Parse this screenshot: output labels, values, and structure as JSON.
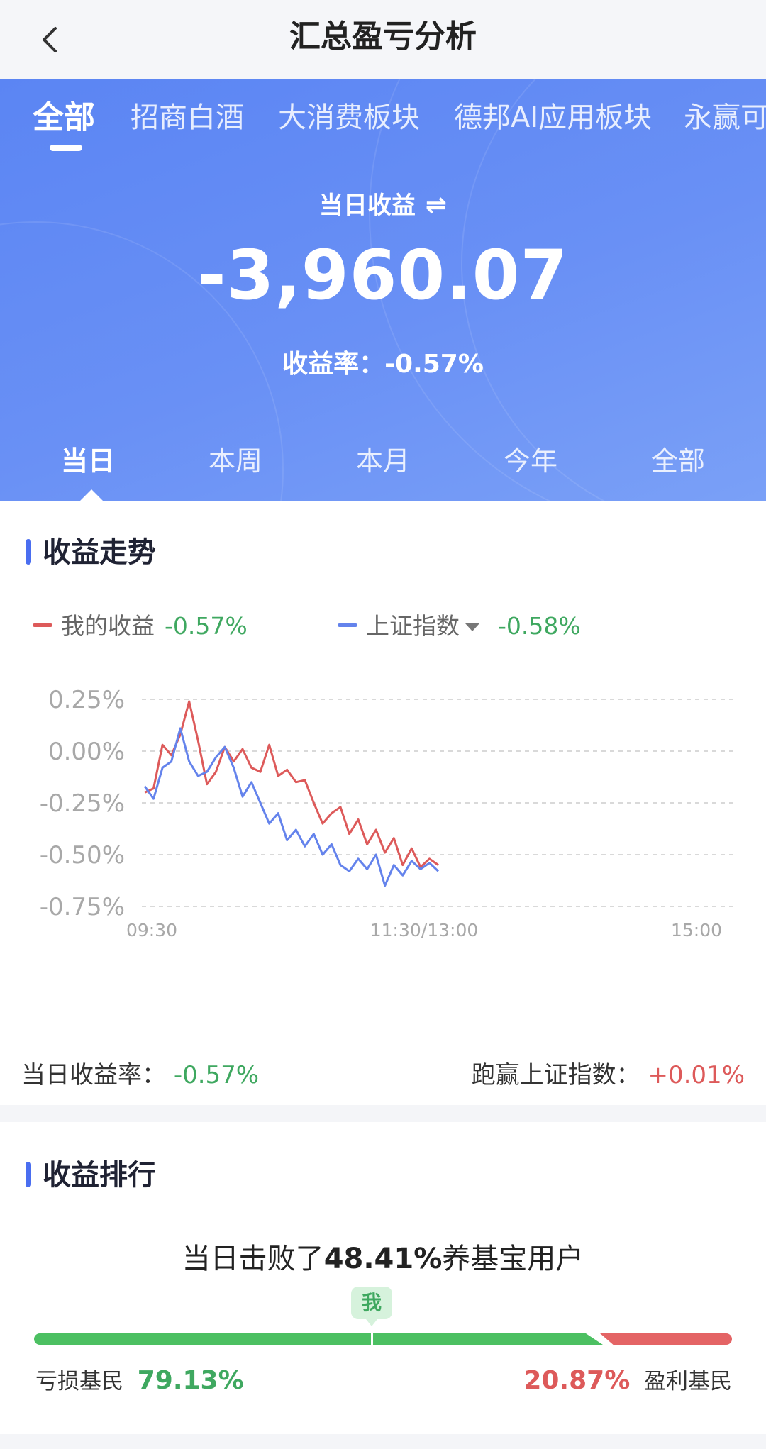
{
  "header": {
    "back_icon": "chevron-left-icon",
    "title": "汇总盈亏分析"
  },
  "fund_tabs": [
    "全部",
    "招商白酒",
    "大消费板块",
    "德邦AI应用板块",
    "永赢可"
  ],
  "summary": {
    "label": "当日收益",
    "swap_icon": "swap-arrows-icon",
    "value": "-3,960.07",
    "rate_label": "收益率：",
    "rate_value": "-0.57%"
  },
  "period_tabs": [
    "当日",
    "本周",
    "本月",
    "今年",
    "全部"
  ],
  "trend": {
    "title": "收益走势",
    "legend_mine_label": "我的收益",
    "legend_mine_value": "-0.57%",
    "legend_index_label": "上证指数",
    "legend_index_value": "-0.58%",
    "foot_rate_label": "当日收益率：",
    "foot_rate_value": "-0.57%",
    "foot_beat_label": "跑赢上证指数：",
    "foot_beat_value": "+0.01%"
  },
  "chart_data": {
    "type": "line",
    "x_ticks": [
      "09:30",
      "11:30/13:00",
      "15:00"
    ],
    "y_ticks": [
      "0.25%",
      "0.00%",
      "-0.25%",
      "-0.50%",
      "-0.75%"
    ],
    "ylim": [
      -0.75,
      0.25
    ],
    "grid": true,
    "colors": {
      "mine": "#dd5a5a",
      "index": "#6483ec"
    },
    "series": [
      {
        "name": "我的收益",
        "values": [
          -0.2,
          -0.18,
          0.03,
          -0.02,
          0.08,
          0.24,
          0.05,
          -0.16,
          -0.1,
          0.02,
          -0.05,
          0.01,
          -0.08,
          -0.1,
          0.03,
          -0.12,
          -0.09,
          -0.15,
          -0.14,
          -0.25,
          -0.35,
          -0.3,
          -0.27,
          -0.4,
          -0.33,
          -0.45,
          -0.38,
          -0.49,
          -0.42,
          -0.55,
          -0.47,
          -0.56,
          -0.52,
          -0.55
        ]
      },
      {
        "name": "上证指数",
        "values": [
          -0.17,
          -0.23,
          -0.08,
          -0.05,
          0.11,
          -0.05,
          -0.12,
          -0.1,
          -0.03,
          0.02,
          -0.08,
          -0.22,
          -0.15,
          -0.25,
          -0.35,
          -0.3,
          -0.43,
          -0.38,
          -0.46,
          -0.4,
          -0.5,
          -0.45,
          -0.55,
          -0.58,
          -0.52,
          -0.57,
          -0.5,
          -0.65,
          -0.55,
          -0.6,
          -0.53,
          -0.57,
          -0.54,
          -0.58
        ]
      }
    ],
    "x_points_fraction_of_day": 0.48
  },
  "ranking": {
    "title": "收益排行",
    "text_before": "当日击败了",
    "percent": "48.41%",
    "text_after": "养基宝用户",
    "me_label": "我",
    "me_position": 0.4841,
    "loss_label": "亏损基民",
    "loss_value": "79.13%",
    "loss_fraction": 0.7913,
    "profit_value": "20.87%",
    "profit_label": "盈利基民"
  }
}
